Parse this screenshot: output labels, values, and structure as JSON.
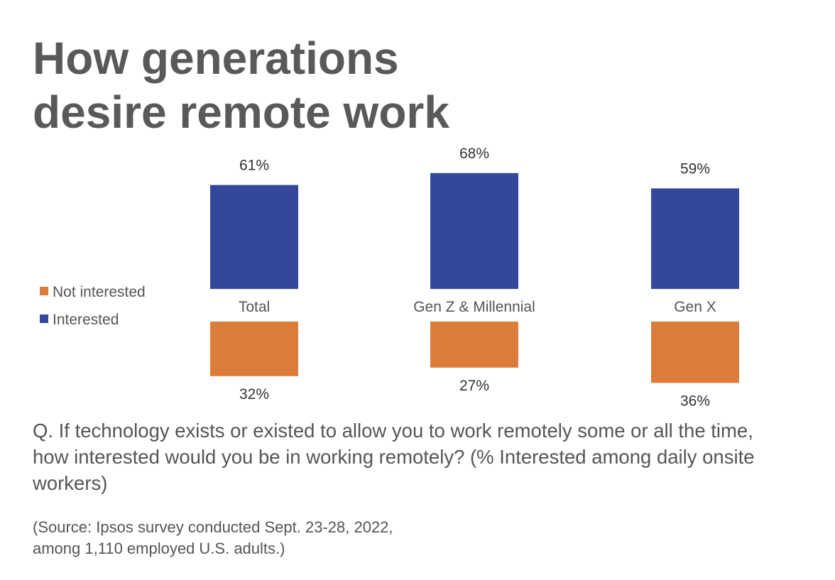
{
  "chart_data": {
    "type": "bar",
    "title": "How generations desire remote work",
    "title_lines": [
      "How generations",
      "desire remote work"
    ],
    "categories": [
      "Total",
      "Gen Z & Millennial",
      "Gen X"
    ],
    "series": [
      {
        "name": "Interested",
        "values": [
          61,
          68,
          59
        ],
        "labels": [
          "61%",
          "68%",
          "59%"
        ],
        "color": "#33489a",
        "direction": "up"
      },
      {
        "name": "Not interested",
        "values": [
          32,
          27,
          36
        ],
        "labels": [
          "32%",
          "27%",
          "36%"
        ],
        "color": "#db7c3a",
        "direction": "down"
      }
    ],
    "legend": [
      "Not interested",
      "Interested"
    ],
    "legend_placement": "left",
    "grid": false,
    "unit": "%"
  },
  "question": "Q. If technology exists or existed to allow you to work remotely some or all the time, how interested would you be in working remotely? (% Interested among daily onsite workers)",
  "source_lines": [
    "(Source: Ipsos survey conducted Sept. 23-28, 2022,",
    "among 1,110 employed U.S. adults.)"
  ]
}
